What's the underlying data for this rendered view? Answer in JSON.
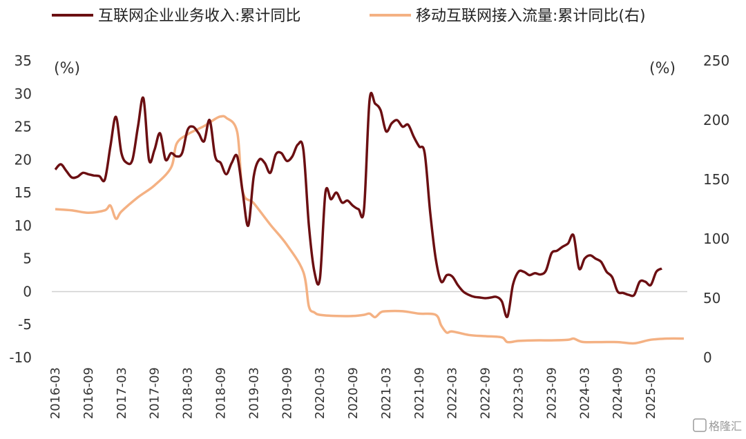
{
  "chart_data": {
    "type": "line",
    "title": "",
    "xlabel": "",
    "ylabel": "(%)",
    "y2label": "(%)",
    "ylim": [
      -10,
      35
    ],
    "y2lim": [
      0,
      250
    ],
    "left_ticks": [
      "35",
      "30",
      "25",
      "20",
      "15",
      "10",
      "5",
      "0",
      "-5",
      "-10"
    ],
    "right_ticks": [
      "250",
      "200",
      "150",
      "100",
      "50",
      "0"
    ],
    "x_tick_labels": [
      "2016-03",
      "2016-09",
      "2017-03",
      "2017-09",
      "2018-03",
      "2018-09",
      "2019-03",
      "2019-09",
      "2020-03",
      "2020-09",
      "2021-03",
      "2021-09",
      "2022-03",
      "2022-09",
      "2023-03",
      "2023-09",
      "2024-03",
      "2024-09",
      "2025-03"
    ],
    "x_start": "2016-03",
    "x_end": "2025-09",
    "legend_position": "top",
    "series": [
      {
        "name": "互联网企业业务收入:累计同比",
        "axis": "left",
        "color": "#6b0f12",
        "points": [
          [
            "2016-03",
            18.5
          ],
          [
            "2016-04",
            19.3
          ],
          [
            "2016-05",
            18.3
          ],
          [
            "2016-06",
            17.3
          ],
          [
            "2016-07",
            17.4
          ],
          [
            "2016-08",
            18.0
          ],
          [
            "2016-09",
            17.8
          ],
          [
            "2016-10",
            17.6
          ],
          [
            "2016-11",
            17.5
          ],
          [
            "2016-12",
            17.0
          ],
          [
            "2017-01",
            22.0
          ],
          [
            "2017-02",
            26.5
          ],
          [
            "2017-03",
            21.0
          ],
          [
            "2017-04",
            19.5
          ],
          [
            "2017-05",
            20.0
          ],
          [
            "2017-06",
            25.0
          ],
          [
            "2017-07",
            29.3
          ],
          [
            "2017-08",
            20.0
          ],
          [
            "2017-09",
            21.5
          ],
          [
            "2017-10",
            24.0
          ],
          [
            "2017-11",
            20.0
          ],
          [
            "2017-12",
            21.0
          ],
          [
            "2018-01",
            20.5
          ],
          [
            "2018-02",
            21.0
          ],
          [
            "2018-03",
            24.5
          ],
          [
            "2018-04",
            25.0
          ],
          [
            "2018-05",
            24.0
          ],
          [
            "2018-06",
            22.8
          ],
          [
            "2018-07",
            26.0
          ],
          [
            "2018-08",
            20.5
          ],
          [
            "2018-09",
            19.5
          ],
          [
            "2018-10",
            17.8
          ],
          [
            "2018-11",
            19.5
          ],
          [
            "2018-12",
            20.5
          ],
          [
            "2019-01",
            15.0
          ],
          [
            "2019-02",
            10.0
          ],
          [
            "2019-03",
            17.5
          ],
          [
            "2019-04",
            20.0
          ],
          [
            "2019-05",
            19.5
          ],
          [
            "2019-06",
            18.0
          ],
          [
            "2019-07",
            20.8
          ],
          [
            "2019-08",
            21.0
          ],
          [
            "2019-09",
            19.8
          ],
          [
            "2019-10",
            20.5
          ],
          [
            "2019-11",
            22.3
          ],
          [
            "2019-12",
            21.5
          ],
          [
            "2020-01",
            10.0
          ],
          [
            "2020-02",
            3.0
          ],
          [
            "2020-03",
            2.0
          ],
          [
            "2020-04",
            15.0
          ],
          [
            "2020-05",
            14.0
          ],
          [
            "2020-06",
            15.0
          ],
          [
            "2020-07",
            13.5
          ],
          [
            "2020-08",
            13.8
          ],
          [
            "2020-09",
            13.0
          ],
          [
            "2020-10",
            12.5
          ],
          [
            "2020-11",
            12.5
          ],
          [
            "2020-12",
            29.0
          ],
          [
            "2021-01",
            28.5
          ],
          [
            "2021-02",
            27.5
          ],
          [
            "2021-03",
            24.3
          ],
          [
            "2021-04",
            25.5
          ],
          [
            "2021-05",
            26.0
          ],
          [
            "2021-06",
            25.0
          ],
          [
            "2021-07",
            25.3
          ],
          [
            "2021-08",
            23.5
          ],
          [
            "2021-09",
            22.0
          ],
          [
            "2021-10",
            21.0
          ],
          [
            "2021-11",
            12.0
          ],
          [
            "2021-12",
            5.0
          ],
          [
            "2022-01",
            1.5
          ],
          [
            "2022-02",
            2.5
          ],
          [
            "2022-03",
            2.3
          ],
          [
            "2022-04",
            1.0
          ],
          [
            "2022-05",
            0.0
          ],
          [
            "2022-06",
            -0.5
          ],
          [
            "2022-07",
            -0.8
          ],
          [
            "2022-08",
            -0.9
          ],
          [
            "2022-09",
            -1.0
          ],
          [
            "2022-10",
            -0.9
          ],
          [
            "2022-11",
            -0.8
          ],
          [
            "2022-12",
            -1.5
          ],
          [
            "2023-01",
            -3.8
          ],
          [
            "2023-02",
            1.0
          ],
          [
            "2023-03",
            3.0
          ],
          [
            "2023-04",
            3.0
          ],
          [
            "2023-05",
            2.5
          ],
          [
            "2023-06",
            2.8
          ],
          [
            "2023-07",
            2.6
          ],
          [
            "2023-08",
            3.2
          ],
          [
            "2023-09",
            5.8
          ],
          [
            "2023-10",
            6.2
          ],
          [
            "2023-11",
            6.8
          ],
          [
            "2023-12",
            7.3
          ],
          [
            "2024-01",
            8.5
          ],
          [
            "2024-02",
            3.5
          ],
          [
            "2024-03",
            5.0
          ],
          [
            "2024-04",
            5.5
          ],
          [
            "2024-05",
            5.0
          ],
          [
            "2024-06",
            4.5
          ],
          [
            "2024-07",
            3.0
          ],
          [
            "2024-08",
            2.2
          ],
          [
            "2024-09",
            0.0
          ],
          [
            "2024-10",
            -0.2
          ],
          [
            "2024-11",
            -0.5
          ],
          [
            "2024-12",
            -0.5
          ],
          [
            "2025-01",
            1.5
          ],
          [
            "2025-02",
            1.5
          ],
          [
            "2025-03",
            1.0
          ],
          [
            "2025-04",
            3.0
          ],
          [
            "2025-05",
            3.5
          ]
        ]
      },
      {
        "name": "移动互联网接入流量:累计同比(右)",
        "axis": "right",
        "color": "#f4b183",
        "points": [
          [
            "2016-03",
            125
          ],
          [
            "2016-06",
            124
          ],
          [
            "2016-09",
            122
          ],
          [
            "2016-12",
            124
          ],
          [
            "2017-01",
            128
          ],
          [
            "2017-02",
            117
          ],
          [
            "2017-03",
            123
          ],
          [
            "2017-06",
            135
          ],
          [
            "2017-09",
            145
          ],
          [
            "2017-12",
            160
          ],
          [
            "2018-01",
            180
          ],
          [
            "2018-03",
            188
          ],
          [
            "2018-06",
            195
          ],
          [
            "2018-08",
            201
          ],
          [
            "2018-09",
            203
          ],
          [
            "2018-10",
            202
          ],
          [
            "2018-12",
            190
          ],
          [
            "2019-01",
            140
          ],
          [
            "2019-03",
            130
          ],
          [
            "2019-06",
            112
          ],
          [
            "2019-09",
            95
          ],
          [
            "2019-12",
            72
          ],
          [
            "2020-01",
            43
          ],
          [
            "2020-02",
            38
          ],
          [
            "2020-03",
            36
          ],
          [
            "2020-06",
            35
          ],
          [
            "2020-09",
            35
          ],
          [
            "2020-11",
            36
          ],
          [
            "2020-12",
            37
          ],
          [
            "2021-01",
            34
          ],
          [
            "2021-02",
            38
          ],
          [
            "2021-03",
            39
          ],
          [
            "2021-06",
            39
          ],
          [
            "2021-09",
            37
          ],
          [
            "2021-12",
            36
          ],
          [
            "2022-01",
            27
          ],
          [
            "2022-02",
            21
          ],
          [
            "2022-03",
            22
          ],
          [
            "2022-06",
            19
          ],
          [
            "2022-09",
            18
          ],
          [
            "2022-12",
            17
          ],
          [
            "2023-01",
            13
          ],
          [
            "2023-03",
            14
          ],
          [
            "2023-06",
            14.5
          ],
          [
            "2023-09",
            14.5
          ],
          [
            "2023-12",
            15
          ],
          [
            "2024-01",
            16
          ],
          [
            "2024-02",
            14
          ],
          [
            "2024-03",
            13
          ],
          [
            "2024-06",
            13
          ],
          [
            "2024-09",
            13
          ],
          [
            "2024-12",
            12
          ],
          [
            "2025-03",
            15
          ],
          [
            "2025-06",
            16
          ],
          [
            "2025-09",
            16
          ]
        ]
      }
    ]
  },
  "watermark": "格隆汇"
}
